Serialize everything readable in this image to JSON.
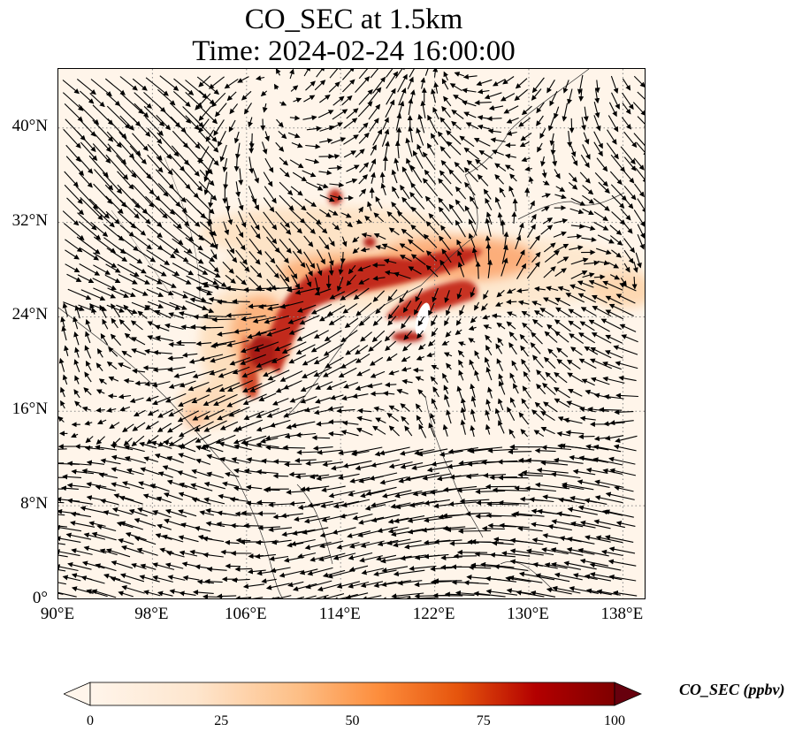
{
  "title": {
    "line1": "CO_SEC at 1.5km",
    "line2": "Time: 2024-02-24 16:00:00"
  },
  "map": {
    "region": "East Asia / South China Sea",
    "lon_range": [
      90,
      140
    ],
    "lat_range": [
      0,
      45
    ],
    "gridlines": "dotted",
    "lat_ticks": [
      {
        "value": 0,
        "label": "0°"
      },
      {
        "value": 8,
        "label": "8°N"
      },
      {
        "value": 16,
        "label": "16°N"
      },
      {
        "value": 24,
        "label": "24°N"
      },
      {
        "value": 32,
        "label": "32°N"
      },
      {
        "value": 40,
        "label": "40°N"
      }
    ],
    "lon_ticks": [
      {
        "value": 90,
        "label": "90°E"
      },
      {
        "value": 98,
        "label": "98°E"
      },
      {
        "value": 106,
        "label": "106°E"
      },
      {
        "value": 114,
        "label": "114°E"
      },
      {
        "value": 122,
        "label": "122°E"
      },
      {
        "value": 130,
        "label": "130°E"
      },
      {
        "value": 138,
        "label": "138°E"
      }
    ],
    "overlay": "wind vectors (arrows)",
    "colormap": "OrRd"
  },
  "colorbar": {
    "label": "CO_SEC (ppbv)",
    "range": [
      0,
      100
    ],
    "extend": "both",
    "ticks": [
      {
        "value": 0,
        "label": "0"
      },
      {
        "value": 25,
        "label": "25"
      },
      {
        "value": 50,
        "label": "50"
      },
      {
        "value": 75,
        "label": "75"
      },
      {
        "value": 100,
        "label": "100"
      }
    ],
    "colors": [
      "#fff5eb",
      "#fdd0a2",
      "#fd8d3c",
      "#d94801",
      "#a50f15",
      "#67000d"
    ]
  }
}
